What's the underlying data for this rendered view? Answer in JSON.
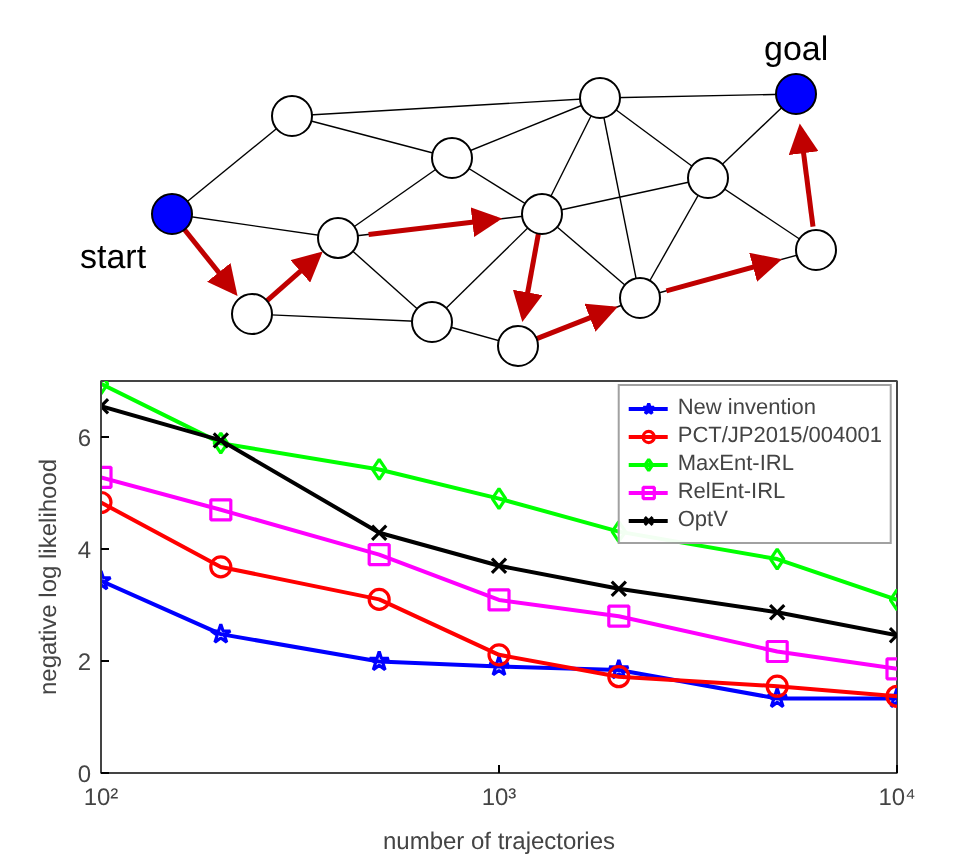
{
  "chart_data": {
    "type": "line",
    "xlabel": "number of trajectories",
    "ylabel": "negative log likelihood",
    "annotations": [
      "start",
      "goal"
    ],
    "x": [
      100,
      200,
      500,
      1000,
      2000,
      5000,
      10000
    ],
    "log": "x",
    "xlim": [
      100,
      10000
    ],
    "xticks": [
      {
        "value": 100,
        "label": "10²"
      },
      {
        "value": 1000,
        "label": "10³"
      },
      {
        "value": 10000,
        "label": "10⁴"
      }
    ],
    "ylim": [
      0,
      7
    ],
    "yticks": [
      0,
      2,
      4,
      6
    ],
    "grid": false,
    "legend": "top right",
    "series": [
      {
        "name": "New invention",
        "color": "#0000ff",
        "marker": "star",
        "values": [
          3.43,
          2.48,
          1.99,
          1.9,
          1.84,
          1.33,
          1.33
        ]
      },
      {
        "name": "PCT/JP2015/004001",
        "color": "#ff0000",
        "marker": "circle",
        "values": [
          4.83,
          3.68,
          3.1,
          2.11,
          1.72,
          1.55,
          1.37
        ]
      },
      {
        "name": "MaxEnt-IRL",
        "color": "#00ff00",
        "marker": "diamond",
        "values": [
          6.95,
          5.89,
          5.42,
          4.9,
          4.31,
          3.82,
          3.09
        ]
      },
      {
        "name": "RelEnt-IRL",
        "color": "#ff00ff",
        "marker": "square",
        "values": [
          5.28,
          4.7,
          3.9,
          3.09,
          2.8,
          2.17,
          1.86
        ]
      },
      {
        "name": "OptV",
        "color": "#000000",
        "marker": "cross",
        "values": [
          6.55,
          5.94,
          4.29,
          3.7,
          3.29,
          2.87,
          2.46
        ]
      }
    ]
  }
}
